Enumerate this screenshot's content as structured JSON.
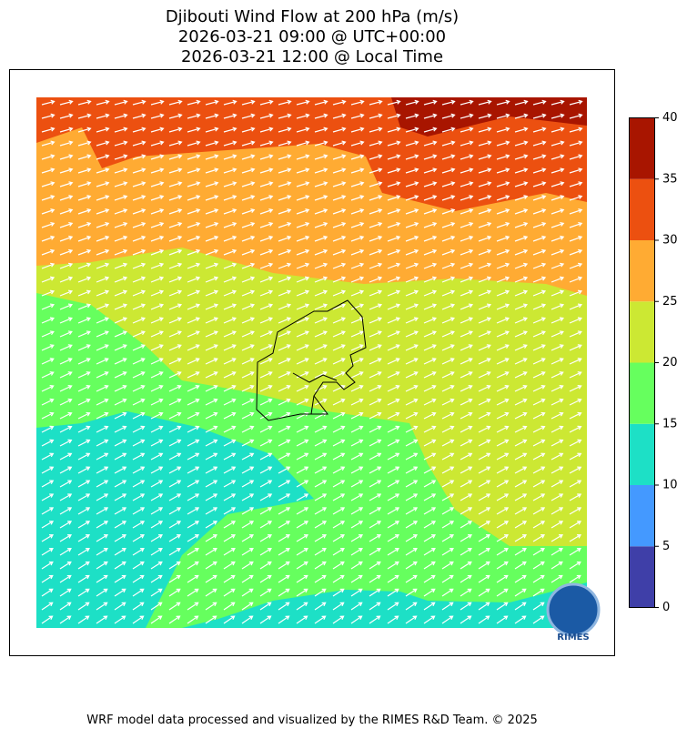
{
  "title": [
    "Djibouti Wind Flow at 200 hPa (m/s)",
    "2026-03-21 09:00 @ UTC+00:00",
    "2026-03-21 12:00 @ Local Time"
  ],
  "colorbar": {
    "ticks": [
      0,
      5,
      10,
      15,
      20,
      25,
      30,
      35,
      40
    ],
    "colors": [
      "#3f3fa8",
      "#4499ff",
      "#1de0c6",
      "#66ff5e",
      "#cce833",
      "#ffab33",
      "#ec5010",
      "#a81500"
    ]
  },
  "logo": "RIMES",
  "footer": "WRF model data processed and visualized by the RIMES R&D Team. © 2025"
}
